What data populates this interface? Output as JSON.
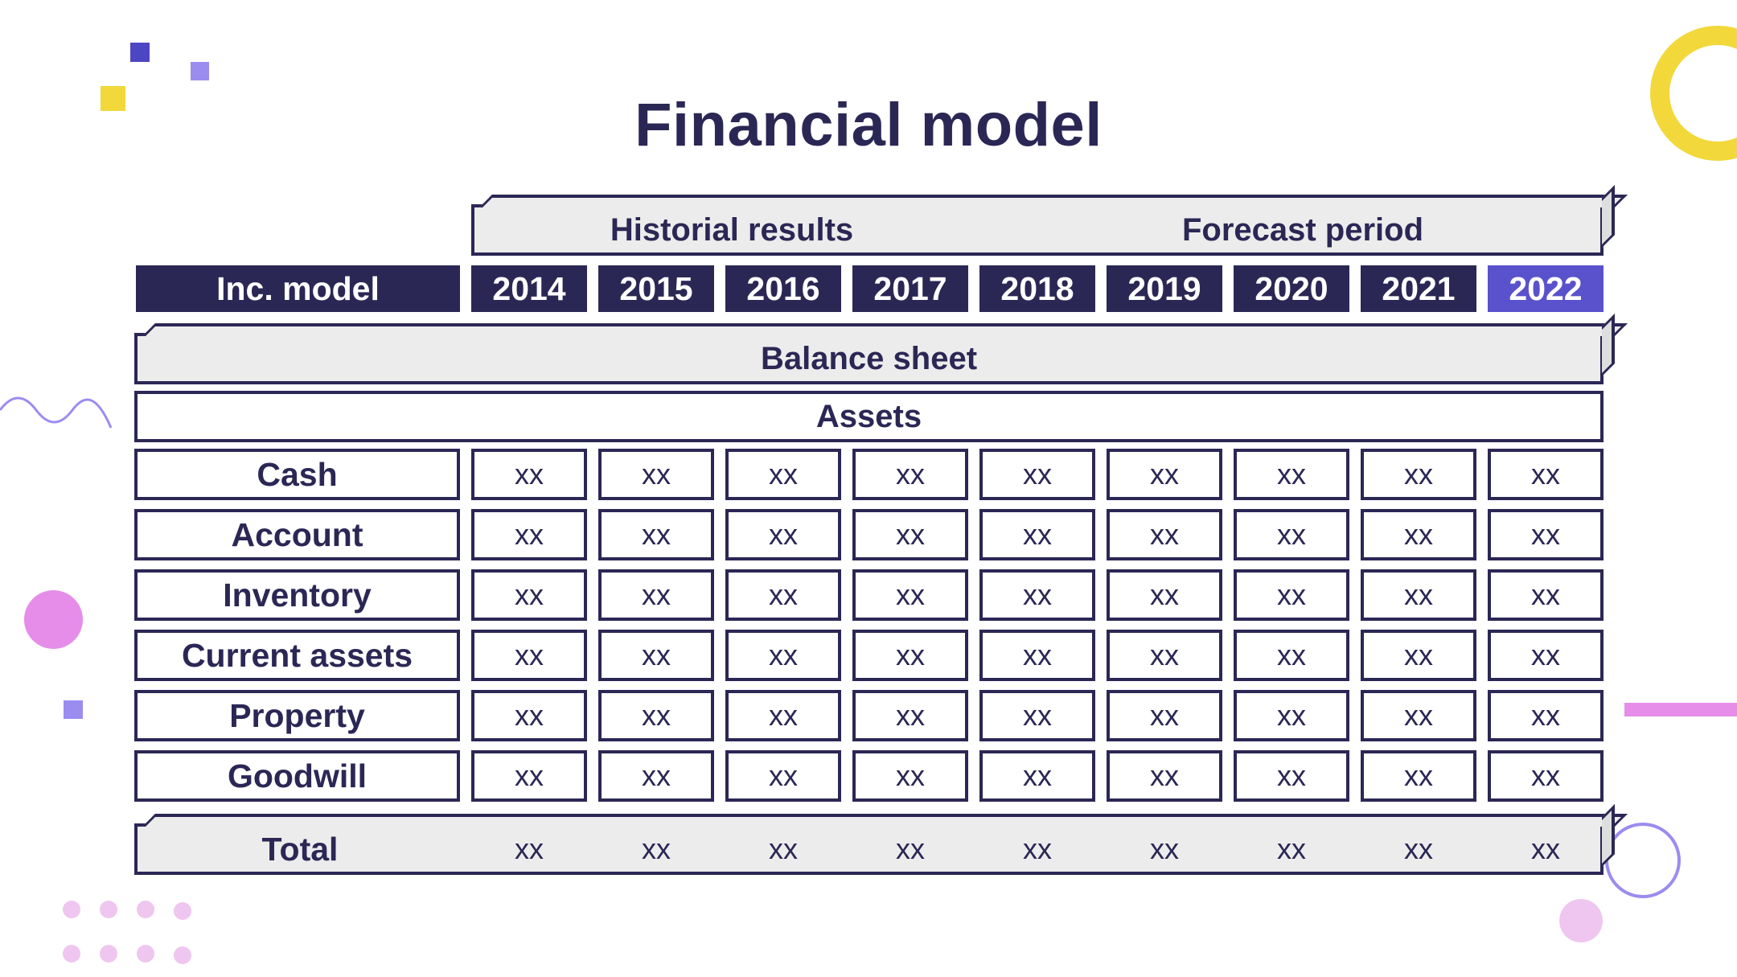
{
  "title": "Financial model",
  "periods": {
    "historical": "Historial results",
    "forecast": "Forecast period"
  },
  "row_header": "Inc. model",
  "years": [
    "2014",
    "2015",
    "2016",
    "2017",
    "2018",
    "2019",
    "2020",
    "2021",
    "2022"
  ],
  "highlight_year": "2022",
  "section": "Balance sheet",
  "subsection": "Assets",
  "rows": [
    {
      "label": "Cash",
      "values": [
        "xx",
        "xx",
        "xx",
        "xx",
        "xx",
        "xx",
        "xx",
        "xx",
        "xx"
      ]
    },
    {
      "label": "Account",
      "values": [
        "xx",
        "xx",
        "xx",
        "xx",
        "xx",
        "xx",
        "xx",
        "xx",
        "xx"
      ]
    },
    {
      "label": "Inventory",
      "values": [
        "xx",
        "xx",
        "xx",
        "xx",
        "xx",
        "xx",
        "xx",
        "xx",
        "xx"
      ]
    },
    {
      "label": "Current assets",
      "values": [
        "xx",
        "xx",
        "xx",
        "xx",
        "xx",
        "xx",
        "xx",
        "xx",
        "xx"
      ]
    },
    {
      "label": "Property",
      "values": [
        "xx",
        "xx",
        "xx",
        "xx",
        "xx",
        "xx",
        "xx",
        "xx",
        "xx"
      ]
    },
    {
      "label": "Goodwill",
      "values": [
        "xx",
        "xx",
        "xx",
        "xx",
        "xx",
        "xx",
        "xx",
        "xx",
        "xx"
      ]
    }
  ],
  "total": {
    "label": "Total",
    "values": [
      "xx",
      "xx",
      "xx",
      "xx",
      "xx",
      "xx",
      "xx",
      "xx",
      "xx"
    ]
  },
  "colors": {
    "navy": "#2b2755",
    "accent_blue": "#5a52cc",
    "light_gray": "#ececec",
    "yellow": "#f2d83a",
    "violet": "#9b8cf0",
    "pink": "#e58de8",
    "light_pink": "#efc6f0"
  }
}
